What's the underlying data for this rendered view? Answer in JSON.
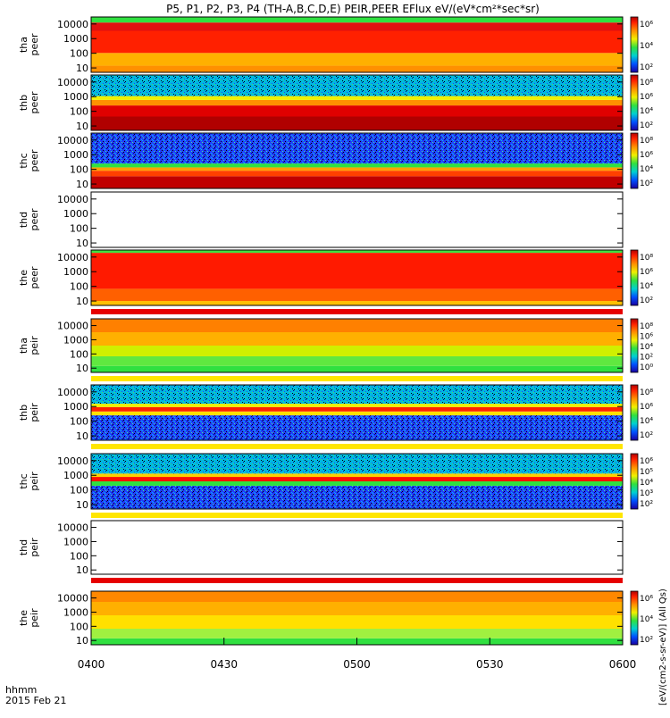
{
  "figure": {
    "title": "P5, P1, P2, P3, P4 (TH-A,B,C,D,E) PEIR,PEER EFlux eV/(eV*cm²*sec*sr)",
    "colorbar_label": "[eV/(cm2-s-sr-eV)] (All Qs)",
    "time_label": "hhmm",
    "date_label": "2015 Feb 21",
    "colors": {
      "red": "#e60000",
      "orange": "#ff7a00",
      "yellow": "#ffe600",
      "green": "#3cd23c",
      "cyan": "#00c8d2",
      "blue": "#1e3cf0",
      "navy": "#000090",
      "maroon": "#7a0000"
    }
  },
  "chart_data": {
    "type": "heatmap",
    "x_ticks": [
      "0400",
      "0430",
      "0500",
      "0530",
      "0600"
    ],
    "xlim": [
      "0400",
      "0600"
    ],
    "y_scale": "log",
    "y_ticks": [
      "10",
      "100",
      "1000",
      "10000"
    ],
    "panels": [
      {
        "label": "tha peer",
        "description": "high flux (red/orange) across most energies, green at high energy",
        "colorbar": [
          "10⁶",
          "10⁴",
          "10²"
        ]
      },
      {
        "label": "thb peer",
        "description": "cyan/blue at high energy, orange band near 1000 eV, dark red at low energy",
        "colorbar": [
          "10⁸",
          "10⁶",
          "10⁴",
          "10²"
        ]
      },
      {
        "label": "thc peer",
        "description": "noisy blue at high energy, green/orange band near 300 eV, red at low energy",
        "colorbar": [
          "10⁸",
          "10⁶",
          "10⁴",
          "10²"
        ]
      },
      {
        "label": "thd peer",
        "description": "no data",
        "colorbar": []
      },
      {
        "label": "the peer",
        "description": "red/orange broad flux, yellow at lowest energies",
        "colorbar": [
          "10⁸",
          "10⁶",
          "10⁴",
          "10²"
        ]
      },
      {
        "label": "tha peir",
        "description": "orange at high energy grading to green below 100 eV",
        "colorbar": [
          "10⁸",
          "10⁶",
          "10⁴",
          "10²",
          "10⁰"
        ]
      },
      {
        "label": "thb peir",
        "description": "blue noise with bright red/orange band near 1000 eV",
        "colorbar": [
          "10⁸",
          "10⁶",
          "10⁴",
          "10²"
        ]
      },
      {
        "label": "thc peir",
        "description": "blue/cyan noise with red band near 1000 eV",
        "colorbar": [
          "10⁶",
          "10⁵",
          "10⁴",
          "10³",
          "10²"
        ]
      },
      {
        "label": "thd peir",
        "description": "no data",
        "colorbar": []
      },
      {
        "label": "the peir",
        "description": "orange/yellow at high energy grading to green at low energy",
        "colorbar": [
          "10⁶",
          "10⁴",
          "10²"
        ]
      }
    ]
  }
}
